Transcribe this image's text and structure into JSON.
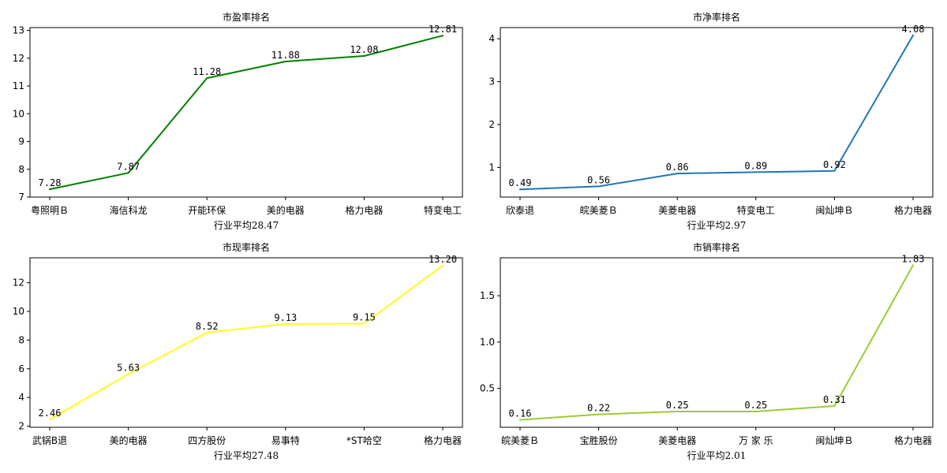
{
  "chart_data": [
    {
      "type": "line",
      "title": "市盈率排名",
      "xlabel": "行业平均28.47",
      "ylabel": "",
      "categories": [
        "粤照明Ｂ",
        "海信科龙",
        "开能环保",
        "美的电器",
        "格力电器",
        "特变电工"
      ],
      "values": [
        7.28,
        7.87,
        11.28,
        11.88,
        12.08,
        12.81
      ],
      "value_labels": [
        "7.28",
        "7.87",
        "11.28",
        "11.88",
        "12.08",
        "12.81"
      ],
      "color": "#008000",
      "ylim": [
        7,
        13.1
      ],
      "yticks": [
        7,
        8,
        9,
        10,
        11,
        12,
        13
      ],
      "ytick_labels": [
        "7",
        "8",
        "9",
        "10",
        "11",
        "12",
        "13"
      ],
      "grid": false
    },
    {
      "type": "line",
      "title": "市净率排名",
      "xlabel": "行业平均2.97",
      "ylabel": "",
      "categories": [
        "欣泰退",
        "皖美菱Ｂ",
        "美菱电器",
        "特变电工",
        "闽灿坤Ｂ",
        "格力电器"
      ],
      "values": [
        0.49,
        0.56,
        0.86,
        0.89,
        0.92,
        4.08
      ],
      "value_labels": [
        "0.49",
        "0.56",
        "0.86",
        "0.89",
        "0.92",
        "4.08"
      ],
      "color": "#1f77b4",
      "ylim": [
        0.31,
        4.26
      ],
      "yticks": [
        1,
        2,
        3,
        4
      ],
      "ytick_labels": [
        "1",
        "2",
        "3",
        "4"
      ],
      "grid": false
    },
    {
      "type": "line",
      "title": "市现率排名",
      "xlabel": "行业平均27.48",
      "ylabel": "",
      "categories": [
        "武锅B退",
        "美的电器",
        "四方股份",
        "易事特",
        "*ST哈空",
        "格力电器"
      ],
      "values": [
        2.46,
        5.63,
        8.52,
        9.13,
        9.15,
        13.2
      ],
      "value_labels": [
        "2.46",
        "5.63",
        "8.52",
        "9.13",
        "9.15",
        "13.20"
      ],
      "color": "#ffff1a",
      "ylim": [
        1.92,
        13.74
      ],
      "yticks": [
        2,
        4,
        6,
        8,
        10,
        12
      ],
      "ytick_labels": [
        "2",
        "4",
        "6",
        "8",
        "10",
        "12"
      ],
      "grid": false
    },
    {
      "type": "line",
      "title": "市销率排名",
      "xlabel": "行业平均2.01",
      "ylabel": "",
      "categories": [
        "皖美菱Ｂ",
        "宝胜股份",
        "美菱电器",
        "万 家 乐",
        "闽灿坤Ｂ",
        "格力电器"
      ],
      "values": [
        0.16,
        0.22,
        0.25,
        0.25,
        0.31,
        1.83
      ],
      "value_labels": [
        "0.16",
        "0.22",
        "0.25",
        "0.25",
        "0.31",
        "1.83"
      ],
      "color": "#9acd32",
      "ylim": [
        0.08,
        1.91
      ],
      "yticks": [
        0.5,
        1.0,
        1.5
      ],
      "ytick_labels": [
        "0.5",
        "1.0",
        "1.5"
      ],
      "grid": false
    }
  ]
}
